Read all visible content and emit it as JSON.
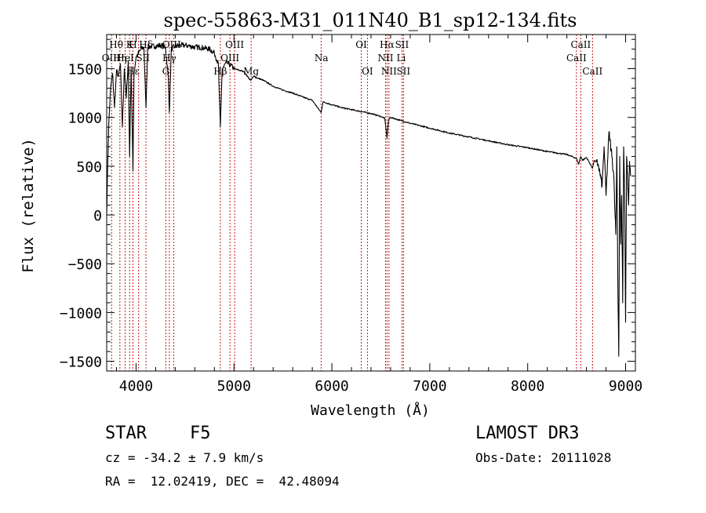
{
  "chart_data": {
    "type": "line",
    "title": "spec-55863-M31_011N40_B1_sp12-134.fits",
    "xlabel": "Wavelength (Å)",
    "ylabel": "Flux (relative)",
    "xlim": [
      3700,
      9100
    ],
    "ylim": [
      -1600,
      1850
    ],
    "xticks": [
      4000,
      5000,
      6000,
      7000,
      8000,
      9000
    ],
    "yticks": [
      -1500,
      -1000,
      -500,
      0,
      500,
      1000,
      1500
    ],
    "line_color": "#000000",
    "marker_color": "#c00000",
    "series": [
      {
        "name": "flux",
        "x": [
          3700,
          3710,
          3720,
          3740,
          3760,
          3780,
          3800,
          3820,
          3840,
          3860,
          3880,
          3900,
          3920,
          3934,
          3950,
          3968,
          3980,
          4000,
          4020,
          4050,
          4080,
          4101,
          4120,
          4150,
          4200,
          4250,
          4300,
          4330,
          4340,
          4360,
          4400,
          4450,
          4500,
          4550,
          4600,
          4650,
          4700,
          4750,
          4800,
          4840,
          4861,
          4880,
          4920,
          4960,
          5000,
          5100,
          5170,
          5200,
          5300,
          5400,
          5500,
          5600,
          5700,
          5800,
          5890,
          5910,
          6000,
          6100,
          6200,
          6300,
          6400,
          6500,
          6540,
          6563,
          6580,
          6600,
          6700,
          6800,
          6900,
          7000,
          7200,
          7400,
          7600,
          7800,
          8000,
          8200,
          8400,
          8498,
          8520,
          8542,
          8560,
          8600,
          8662,
          8680,
          8720,
          8760,
          8780,
          8800,
          8830,
          8860,
          8880,
          8900,
          8910,
          8920,
          8930,
          8940,
          8950,
          8960,
          8970,
          8980,
          8990,
          9000,
          9010,
          9020,
          9030,
          9040,
          9050
        ],
        "y": [
          0,
          500,
          900,
          1300,
          1450,
          1100,
          1480,
          1420,
          1550,
          900,
          1500,
          1200,
          1580,
          600,
          1520,
          450,
          1450,
          1620,
          1650,
          1700,
          1720,
          1100,
          1720,
          1730,
          1730,
          1740,
          1720,
          1400,
          1050,
          1700,
          1730,
          1740,
          1740,
          1730,
          1720,
          1720,
          1710,
          1700,
          1660,
          1550,
          900,
          1500,
          1560,
          1540,
          1500,
          1470,
          1380,
          1420,
          1380,
          1320,
          1280,
          1250,
          1210,
          1175,
          1050,
          1160,
          1130,
          1100,
          1080,
          1060,
          1040,
          1010,
          990,
          790,
          980,
          1000,
          970,
          940,
          915,
          890,
          840,
          800,
          760,
          720,
          690,
          650,
          620,
          580,
          520,
          600,
          560,
          590,
          480,
          560,
          520,
          300,
          700,
          200,
          850,
          600,
          400,
          -200,
          700,
          -600,
          -1450,
          600,
          -300,
          200,
          -900,
          700,
          200,
          -1100,
          600,
          400,
          100,
          550,
          400
        ],
        "segments": [
          [
            4,
            8
          ],
          [
            14,
            20
          ],
          [
            30,
            36
          ],
          [
            46,
            60
          ],
          [
            91,
            96
          ],
          [
            111,
            114
          ]
        ]
      }
    ],
    "markers": {
      "wavelengths": [
        3750,
        3835,
        3889,
        3934,
        3968,
        4026,
        4101,
        4304,
        4340,
        4384,
        4861,
        4959,
        5007,
        5175,
        5890,
        6300,
        6363,
        6548,
        6563,
        6583,
        6716,
        6731,
        8498,
        8542,
        8662
      ],
      "labels": [
        {
          "text": "Hθ",
          "wl": 3797
        },
        {
          "text": "K",
          "wl": 3934
        },
        {
          "text": "H",
          "wl": 3968
        },
        {
          "text": "Hδ",
          "wl": 4101
        },
        {
          "text": "OII",
          "wl": 3727
        },
        {
          "text": "HeI",
          "wl": 3889
        },
        {
          "text": "SII",
          "wl": 4070
        },
        {
          "text": "Hη",
          "wl": 3835
        },
        {
          "text": "Hε",
          "wl": 3970
        },
        {
          "text": "OIII",
          "wl": 4363
        },
        {
          "text": "Hγ",
          "wl": 4340
        },
        {
          "text": "G",
          "wl": 4304
        },
        {
          "text": "OIII",
          "wl": 5007
        },
        {
          "text": "OIII",
          "wl": 4959
        },
        {
          "text": "Hβ",
          "wl": 4861
        },
        {
          "text": "Mg",
          "wl": 5175
        },
        {
          "text": "Na",
          "wl": 5893
        },
        {
          "text": "OI",
          "wl": 6300
        },
        {
          "text": "OI",
          "wl": 6363
        },
        {
          "text": "Hα",
          "wl": 6563
        },
        {
          "text": "SII",
          "wl": 6716
        },
        {
          "text": "NII",
          "wl": 6548
        },
        {
          "text": "Li",
          "wl": 6708
        },
        {
          "text": "NII",
          "wl": 6583
        },
        {
          "text": "SII",
          "wl": 6731
        },
        {
          "text": "CaII",
          "wl": 8542
        },
        {
          "text": "CaII",
          "wl": 8498
        },
        {
          "text": "CaII",
          "wl": 8662
        }
      ]
    }
  },
  "info": {
    "object_class": "STAR",
    "subclass": "F5",
    "survey": "LAMOST DR3",
    "redshift_line": "cz = -34.2 ± 7.9 km/s",
    "obs_date_line": "Obs-Date: 20111028",
    "coords_line": "RA =  12.02419, DEC =  42.48094"
  }
}
